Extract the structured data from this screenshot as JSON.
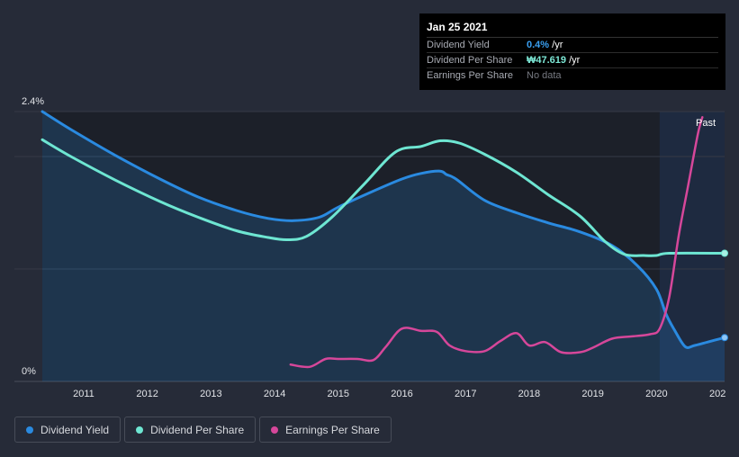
{
  "tooltip": {
    "date": "Jan 25 2021",
    "rows": [
      {
        "label": "Dividend Yield",
        "value": "0.4%",
        "unit": " /yr",
        "color": "#3aa0f2"
      },
      {
        "label": "Dividend Per Share",
        "value": "₩47.619",
        "unit": " /yr",
        "color": "#7de8d6"
      },
      {
        "label": "Earnings Per Share",
        "value": "No data",
        "unit": "",
        "color": "#777a82"
      }
    ]
  },
  "legend": [
    {
      "label": "Dividend Yield",
      "color": "#2a8ae0"
    },
    {
      "label": "Dividend Per Share",
      "color": "#6ee6d2"
    },
    {
      "label": "Earnings Per Share",
      "color": "#d6479a"
    }
  ],
  "chart_data": {
    "type": "line",
    "past_label": "Past",
    "y_tick_labels": [
      "2.4%",
      "0%"
    ],
    "ylim": [
      0,
      2.4
    ],
    "x_ticks": [
      "2011",
      "2012",
      "2013",
      "2014",
      "2015",
      "2016",
      "2017",
      "2018",
      "2019",
      "2020",
      "202"
    ],
    "xlim": [
      2010.35,
      2021.07
    ],
    "past_start": 2020.05,
    "series": [
      {
        "name": "Dividend Yield",
        "color": "#2a8ae0",
        "unit": "%",
        "points": [
          [
            2010.35,
            2.4
          ],
          [
            2010.8,
            2.24
          ],
          [
            2011.5,
            2.01
          ],
          [
            2012.2,
            1.8
          ],
          [
            2012.8,
            1.64
          ],
          [
            2013.4,
            1.52
          ],
          [
            2013.9,
            1.45
          ],
          [
            2014.3,
            1.43
          ],
          [
            2014.7,
            1.46
          ],
          [
            2015.0,
            1.55
          ],
          [
            2015.5,
            1.68
          ],
          [
            2016.0,
            1.8
          ],
          [
            2016.3,
            1.85
          ],
          [
            2016.6,
            1.87
          ],
          [
            2016.7,
            1.84
          ],
          [
            2016.85,
            1.8
          ],
          [
            2017.3,
            1.61
          ],
          [
            2017.8,
            1.5
          ],
          [
            2018.3,
            1.41
          ],
          [
            2018.8,
            1.33
          ],
          [
            2019.3,
            1.21
          ],
          [
            2019.7,
            1.03
          ],
          [
            2020.0,
            0.82
          ],
          [
            2020.15,
            0.6
          ],
          [
            2020.28,
            0.46
          ],
          [
            2020.45,
            0.31
          ],
          [
            2020.6,
            0.32
          ],
          [
            2020.8,
            0.35
          ],
          [
            2021.07,
            0.39
          ]
        ]
      },
      {
        "name": "Dividend Per Share",
        "color": "#6ee6d2",
        "unit": "₩",
        "points": [
          [
            2010.35,
            2.15
          ],
          [
            2010.8,
            2.0
          ],
          [
            2011.5,
            1.79
          ],
          [
            2012.2,
            1.6
          ],
          [
            2012.8,
            1.46
          ],
          [
            2013.4,
            1.34
          ],
          [
            2013.9,
            1.28
          ],
          [
            2014.2,
            1.26
          ],
          [
            2014.5,
            1.29
          ],
          [
            2014.9,
            1.46
          ],
          [
            2015.4,
            1.75
          ],
          [
            2015.9,
            2.04
          ],
          [
            2016.3,
            2.09
          ],
          [
            2016.6,
            2.14
          ],
          [
            2016.9,
            2.12
          ],
          [
            2017.3,
            2.02
          ],
          [
            2017.8,
            1.86
          ],
          [
            2018.3,
            1.66
          ],
          [
            2018.8,
            1.47
          ],
          [
            2019.2,
            1.24
          ],
          [
            2019.5,
            1.13
          ],
          [
            2019.8,
            1.12
          ],
          [
            2020.0,
            1.12
          ],
          [
            2020.2,
            1.14
          ],
          [
            2021.07,
            1.14
          ]
        ]
      },
      {
        "name": "Earnings Per Share",
        "color": "#d6479a",
        "unit": "₩",
        "points": [
          [
            2014.25,
            0.15
          ],
          [
            2014.55,
            0.13
          ],
          [
            2014.8,
            0.2
          ],
          [
            2015.0,
            0.2
          ],
          [
            2015.3,
            0.2
          ],
          [
            2015.55,
            0.19
          ],
          [
            2015.75,
            0.31
          ],
          [
            2016.0,
            0.47
          ],
          [
            2016.3,
            0.45
          ],
          [
            2016.55,
            0.44
          ],
          [
            2016.75,
            0.32
          ],
          [
            2017.0,
            0.27
          ],
          [
            2017.3,
            0.27
          ],
          [
            2017.55,
            0.36
          ],
          [
            2017.8,
            0.43
          ],
          [
            2018.0,
            0.32
          ],
          [
            2018.25,
            0.35
          ],
          [
            2018.5,
            0.26
          ],
          [
            2018.8,
            0.26
          ],
          [
            2019.0,
            0.3
          ],
          [
            2019.3,
            0.38
          ],
          [
            2019.6,
            0.4
          ],
          [
            2019.9,
            0.42
          ],
          [
            2020.05,
            0.47
          ],
          [
            2020.2,
            0.75
          ],
          [
            2020.35,
            1.3
          ],
          [
            2020.5,
            1.75
          ],
          [
            2020.65,
            2.2
          ],
          [
            2020.72,
            2.35
          ]
        ]
      }
    ]
  }
}
